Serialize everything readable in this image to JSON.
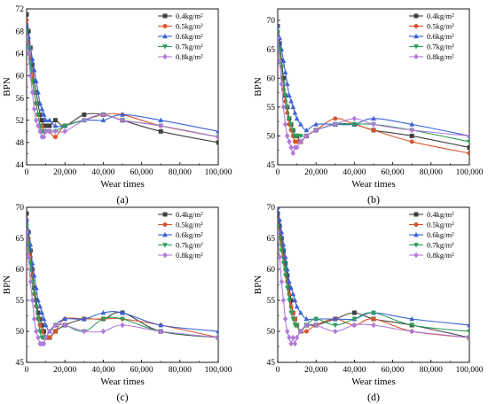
{
  "legend_labels": [
    "0.4kg/m²",
    "0.5kg/m²",
    "0.6kg/m²",
    "0.7kg/m²",
    "0.8kg/m²"
  ],
  "series_colors": [
    "#404040",
    "#d9542c",
    "#3a62d6",
    "#2a9d5a",
    "#b07ad9"
  ],
  "series_markers": [
    "square",
    "circle",
    "triangle-up",
    "triangle-down",
    "diamond"
  ],
  "chart_data": [
    {
      "type": "line",
      "panel_label": "(a)",
      "xlabel": "Wear times",
      "ylabel": "BPN",
      "xlim": [
        0,
        100000
      ],
      "ylim": [
        44,
        72
      ],
      "xticks": [
        0,
        20000,
        40000,
        60000,
        80000,
        100000
      ],
      "xtick_labels": [
        "0",
        "20,000",
        "40,000",
        "60,000",
        "80,000",
        "100,000"
      ],
      "yticks": [
        44,
        48,
        52,
        56,
        60,
        64,
        68,
        72
      ],
      "ytick_labels": [
        "44",
        "48",
        "52",
        "56",
        "60",
        "64",
        "68",
        "72"
      ],
      "legend_position": "top-right",
      "series": [
        {
          "name": "0.4kg/m²",
          "x": [
            0,
            1000,
            2000,
            3000,
            4000,
            5000,
            6000,
            7000,
            8000,
            9000,
            10000,
            12000,
            15000,
            20000,
            30000,
            40000,
            50000,
            70000,
            100000
          ],
          "y": [
            71,
            68,
            65,
            62,
            59,
            57,
            55,
            53,
            52,
            51,
            51,
            51,
            52,
            51,
            53,
            53,
            52,
            50,
            48
          ]
        },
        {
          "name": "0.5kg/m²",
          "x": [
            0,
            1000,
            2000,
            3000,
            4000,
            5000,
            6000,
            7000,
            8000,
            9000,
            10000,
            12000,
            15000,
            20000,
            30000,
            40000,
            50000,
            70000,
            100000
          ],
          "y": [
            70,
            66,
            63,
            60,
            57,
            55,
            53,
            51,
            51,
            50,
            50,
            50,
            49,
            51,
            52,
            53,
            53,
            51,
            49
          ]
        },
        {
          "name": "0.6kg/m²",
          "x": [
            0,
            1000,
            2000,
            3000,
            4000,
            5000,
            6000,
            7000,
            8000,
            9000,
            10000,
            12000,
            15000,
            20000,
            30000,
            40000,
            50000,
            70000,
            100000
          ],
          "y": [
            69,
            67,
            65,
            63,
            61,
            59,
            57,
            55,
            54,
            53,
            52,
            52,
            51,
            51,
            52,
            52,
            53,
            52,
            50
          ]
        },
        {
          "name": "0.7kg/m²",
          "x": [
            0,
            1000,
            2000,
            3000,
            4000,
            5000,
            6000,
            7000,
            8000,
            9000,
            10000,
            12000,
            15000,
            20000,
            30000,
            40000,
            50000,
            70000,
            100000
          ],
          "y": [
            68,
            65,
            62,
            59,
            57,
            55,
            53,
            51,
            50,
            50,
            50,
            50,
            50,
            51,
            52,
            53,
            52,
            51,
            49
          ]
        },
        {
          "name": "0.8kg/m²",
          "x": [
            0,
            1000,
            2000,
            3000,
            4000,
            5000,
            6000,
            7000,
            8000,
            9000,
            10000,
            12000,
            15000,
            20000,
            30000,
            40000,
            50000,
            70000,
            100000
          ],
          "y": [
            67,
            64,
            60,
            57,
            54,
            52,
            51,
            50,
            49,
            49,
            50,
            50,
            50,
            50,
            52,
            53,
            52,
            51,
            49
          ]
        }
      ]
    },
    {
      "type": "line",
      "panel_label": "(b)",
      "xlabel": "Wear times",
      "ylabel": "BPN",
      "xlim": [
        0,
        100000
      ],
      "ylim": [
        45,
        72
      ],
      "xticks": [
        0,
        20000,
        40000,
        60000,
        80000,
        100000
      ],
      "xtick_labels": [
        "0",
        "20,000",
        "40,000",
        "60,000",
        "80,000",
        "100,000"
      ],
      "yticks": [
        45,
        50,
        55,
        60,
        65,
        70
      ],
      "ytick_labels": [
        "45",
        "50",
        "55",
        "60",
        "65",
        "70"
      ],
      "legend_position": "top-right",
      "series": [
        {
          "name": "0.4kg/m²",
          "x": [
            0,
            1000,
            2000,
            3000,
            4000,
            5000,
            6000,
            7000,
            8000,
            9000,
            10000,
            12000,
            15000,
            20000,
            30000,
            40000,
            50000,
            70000,
            100000
          ],
          "y": [
            69,
            66,
            63,
            60,
            57,
            55,
            53,
            52,
            51,
            50,
            50,
            49,
            50,
            51,
            52,
            52,
            51,
            50,
            48
          ]
        },
        {
          "name": "0.5kg/m²",
          "x": [
            0,
            1000,
            2000,
            3000,
            4000,
            5000,
            6000,
            7000,
            8000,
            9000,
            10000,
            12000,
            15000,
            20000,
            30000,
            40000,
            50000,
            70000,
            100000
          ],
          "y": [
            68,
            65,
            62,
            58,
            56,
            54,
            52,
            51,
            50,
            49,
            49,
            49,
            50,
            51,
            53,
            52,
            51,
            49,
            47
          ]
        },
        {
          "name": "0.6kg/m²",
          "x": [
            0,
            1000,
            2000,
            3000,
            4000,
            5000,
            6000,
            7000,
            8000,
            9000,
            10000,
            12000,
            15000,
            20000,
            30000,
            40000,
            50000,
            70000,
            100000
          ],
          "y": [
            69,
            67,
            65,
            63,
            61,
            59,
            57,
            56,
            55,
            54,
            53,
            52,
            51,
            52,
            52,
            52,
            53,
            52,
            50
          ]
        },
        {
          "name": "0.7kg/m²",
          "x": [
            0,
            1000,
            2000,
            3000,
            4000,
            5000,
            6000,
            7000,
            8000,
            9000,
            10000,
            12000,
            15000,
            20000,
            30000,
            40000,
            50000,
            70000,
            100000
          ],
          "y": [
            68,
            65,
            62,
            59,
            57,
            55,
            53,
            52,
            51,
            50,
            50,
            50,
            50,
            51,
            52,
            52,
            52,
            51,
            49
          ]
        },
        {
          "name": "0.8kg/m²",
          "x": [
            0,
            1000,
            2000,
            3000,
            4000,
            5000,
            6000,
            7000,
            8000,
            9000,
            10000,
            12000,
            15000,
            20000,
            30000,
            40000,
            50000,
            70000,
            100000
          ],
          "y": [
            67,
            63,
            59,
            55,
            52,
            50,
            49,
            48,
            47,
            48,
            48,
            49,
            50,
            51,
            52,
            53,
            52,
            51,
            50
          ]
        }
      ]
    },
    {
      "type": "line",
      "panel_label": "(c)",
      "xlabel": "Wear times",
      "ylabel": "BPN",
      "xlim": [
        0,
        100000
      ],
      "ylim": [
        45,
        70
      ],
      "xticks": [
        0,
        20000,
        40000,
        60000,
        80000,
        100000
      ],
      "xtick_labels": [
        "0",
        "20,000",
        "40,000",
        "60,000",
        "80,000",
        "100,000"
      ],
      "yticks": [
        45,
        50,
        55,
        60,
        65,
        70
      ],
      "ytick_labels": [
        "45",
        "50",
        "55",
        "60",
        "65",
        "70"
      ],
      "legend_position": "top-right",
      "series": [
        {
          "name": "0.4kg/m²",
          "x": [
            0,
            1000,
            2000,
            3000,
            4000,
            5000,
            6000,
            7000,
            8000,
            9000,
            10000,
            12000,
            15000,
            20000,
            30000,
            40000,
            50000,
            70000,
            100000
          ],
          "y": [
            69,
            66,
            63,
            60,
            57,
            55,
            53,
            52,
            51,
            50,
            49,
            49,
            50,
            51,
            52,
            52,
            53,
            50,
            49
          ]
        },
        {
          "name": "0.5kg/m²",
          "x": [
            0,
            1000,
            2000,
            3000,
            4000,
            5000,
            6000,
            7000,
            8000,
            9000,
            10000,
            12000,
            15000,
            20000,
            30000,
            40000,
            50000,
            70000,
            100000
          ],
          "y": [
            68,
            65,
            62,
            59,
            56,
            54,
            52,
            51,
            50,
            49,
            49,
            49,
            50,
            52,
            52,
            52,
            52,
            51,
            49
          ]
        },
        {
          "name": "0.6kg/m²",
          "x": [
            0,
            1000,
            2000,
            3000,
            4000,
            5000,
            6000,
            7000,
            8000,
            9000,
            10000,
            12000,
            15000,
            20000,
            30000,
            40000,
            50000,
            70000,
            100000
          ],
          "y": [
            68,
            66,
            64,
            61,
            59,
            57,
            55,
            54,
            53,
            52,
            51,
            50,
            51,
            52,
            52,
            53,
            53,
            51,
            50
          ]
        },
        {
          "name": "0.7kg/m²",
          "x": [
            0,
            1000,
            2000,
            3000,
            4000,
            5000,
            6000,
            7000,
            8000,
            9000,
            10000,
            12000,
            15000,
            20000,
            30000,
            40000,
            50000,
            70000,
            100000
          ],
          "y": [
            67,
            64,
            61,
            58,
            56,
            54,
            52,
            50,
            49,
            49,
            49,
            50,
            51,
            51,
            50,
            52,
            52,
            50,
            49
          ]
        },
        {
          "name": "0.8kg/m²",
          "x": [
            0,
            1000,
            2000,
            3000,
            4000,
            5000,
            6000,
            7000,
            8000,
            9000,
            10000,
            12000,
            15000,
            20000,
            30000,
            40000,
            50000,
            70000,
            100000
          ],
          "y": [
            66,
            62,
            58,
            55,
            52,
            50,
            49,
            48,
            48,
            48,
            49,
            50,
            51,
            51,
            50,
            50,
            51,
            50,
            49
          ]
        }
      ]
    },
    {
      "type": "line",
      "panel_label": "(d)",
      "xlabel": "Wear times",
      "ylabel": "BPN",
      "xlim": [
        0,
        100000
      ],
      "ylim": [
        45,
        70
      ],
      "xticks": [
        0,
        20000,
        40000,
        60000,
        80000,
        100000
      ],
      "xtick_labels": [
        "0",
        "20,000",
        "40,000",
        "60,000",
        "80,000",
        "100,000"
      ],
      "yticks": [
        45,
        50,
        55,
        60,
        65,
        70
      ],
      "ytick_labels": [
        "45",
        "50",
        "55",
        "60",
        "65",
        "70"
      ],
      "legend_position": "top-right",
      "series": [
        {
          "name": "0.4kg/m²",
          "x": [
            0,
            1000,
            2000,
            3000,
            4000,
            5000,
            6000,
            7000,
            8000,
            9000,
            10000,
            12000,
            15000,
            20000,
            30000,
            40000,
            50000,
            70000,
            100000
          ],
          "y": [
            69,
            67,
            65,
            63,
            61,
            59,
            57,
            55,
            53,
            52,
            51,
            50,
            51,
            51,
            52,
            53,
            52,
            51,
            49
          ]
        },
        {
          "name": "0.5kg/m²",
          "x": [
            0,
            1000,
            2000,
            3000,
            4000,
            5000,
            6000,
            7000,
            8000,
            9000,
            10000,
            12000,
            15000,
            20000,
            30000,
            40000,
            50000,
            70000,
            100000
          ],
          "y": [
            68,
            66,
            64,
            62,
            60,
            58,
            56,
            54,
            53,
            52,
            51,
            50,
            50,
            51,
            52,
            51,
            52,
            50,
            49
          ]
        },
        {
          "name": "0.6kg/m²",
          "x": [
            0,
            1000,
            2000,
            3000,
            4000,
            5000,
            6000,
            7000,
            8000,
            9000,
            10000,
            12000,
            15000,
            20000,
            30000,
            40000,
            50000,
            70000,
            100000
          ],
          "y": [
            70,
            68,
            66,
            64,
            62,
            60,
            58,
            57,
            56,
            55,
            54,
            53,
            52,
            52,
            52,
            52,
            53,
            52,
            51
          ]
        },
        {
          "name": "0.7kg/m²",
          "x": [
            0,
            1000,
            2000,
            3000,
            4000,
            5000,
            6000,
            7000,
            8000,
            9000,
            10000,
            12000,
            15000,
            20000,
            30000,
            40000,
            50000,
            70000,
            100000
          ],
          "y": [
            67,
            65,
            63,
            61,
            59,
            57,
            55,
            53,
            52,
            51,
            51,
            50,
            51,
            52,
            51,
            52,
            53,
            51,
            50
          ]
        },
        {
          "name": "0.8kg/m²",
          "x": [
            0,
            1000,
            2000,
            3000,
            4000,
            5000,
            6000,
            7000,
            8000,
            9000,
            10000,
            12000,
            15000,
            20000,
            30000,
            40000,
            50000,
            70000,
            100000
          ],
          "y": [
            66,
            62,
            58,
            55,
            52,
            50,
            49,
            48,
            49,
            48,
            49,
            50,
            51,
            51,
            50,
            51,
            51,
            50,
            49
          ]
        }
      ]
    }
  ]
}
